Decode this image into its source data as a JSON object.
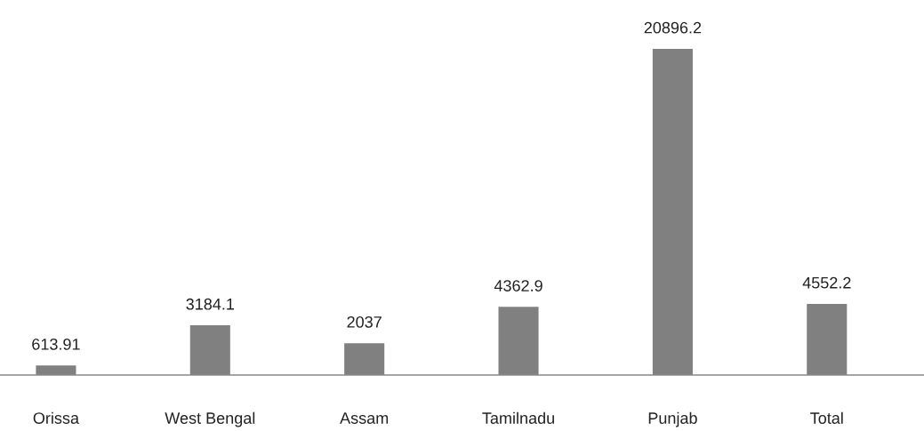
{
  "chart_data": {
    "type": "bar",
    "categories": [
      "Orissa",
      "West Bengal",
      "Assam",
      "Tamilnadu",
      "Punjab",
      "Total"
    ],
    "values": [
      613.91,
      3184.1,
      2037,
      4362.9,
      20896.2,
      4552.2
    ],
    "value_labels": [
      "613.91",
      "3184.1",
      "2037",
      "4362.9",
      "20896.2",
      "4552.2"
    ],
    "color": "#808080",
    "grid": false,
    "legend": false
  }
}
